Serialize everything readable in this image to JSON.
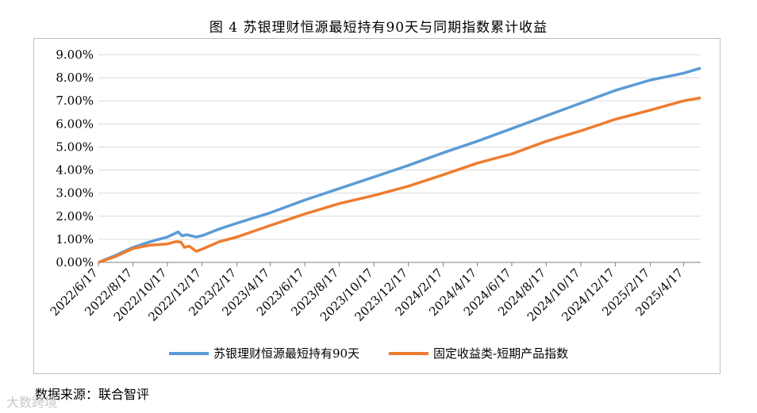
{
  "title": "图 4 苏银理财恒源最短持有90天与同期指数累计收益",
  "source": "数据来源：联合智评",
  "watermark": "大数跨境",
  "colors": {
    "series1": "#5b9bd5",
    "series2": "#ed7d31",
    "grid": "#d9d9d9",
    "axis": "#7f7f7f"
  },
  "chart_data": {
    "type": "line",
    "title": "图 4 苏银理财恒源最短持有90天与同期指数累计收益",
    "xlabel": "",
    "ylabel": "",
    "ylim": [
      0,
      0.09
    ],
    "ytick_step": 0.01,
    "yticks": [
      "0.00%",
      "1.00%",
      "2.00%",
      "3.00%",
      "4.00%",
      "5.00%",
      "6.00%",
      "7.00%",
      "8.00%",
      "9.00%"
    ],
    "x_range": [
      "2022-06-17",
      "2025-05-17"
    ],
    "xticks": [
      "2022/6/17",
      "2022/8/17",
      "2022/10/17",
      "2022/12/17",
      "2023/2/17",
      "2023/4/17",
      "2023/6/17",
      "2023/8/17",
      "2023/10/17",
      "2023/12/17",
      "2024/2/17",
      "2024/4/17",
      "2024/6/17",
      "2024/8/17",
      "2024/10/17",
      "2024/12/17",
      "2025/2/17",
      "2025/4/17"
    ],
    "grid": true,
    "legend_position": "bottom",
    "series": [
      {
        "name": "苏银理财恒源最短持有90天",
        "points": [
          [
            "2022-06-17",
            0.0
          ],
          [
            "2022-07-17",
            0.003
          ],
          [
            "2022-08-17",
            0.0065
          ],
          [
            "2022-09-17",
            0.009
          ],
          [
            "2022-10-17",
            0.011
          ],
          [
            "2022-11-05",
            0.0132
          ],
          [
            "2022-11-12",
            0.0115
          ],
          [
            "2022-11-20",
            0.012
          ],
          [
            "2022-12-07",
            0.011
          ],
          [
            "2022-12-20",
            0.0118
          ],
          [
            "2023-01-17",
            0.0145
          ],
          [
            "2023-02-17",
            0.017
          ],
          [
            "2023-04-17",
            0.0215
          ],
          [
            "2023-06-17",
            0.027
          ],
          [
            "2023-08-17",
            0.032
          ],
          [
            "2023-10-17",
            0.037
          ],
          [
            "2023-12-17",
            0.042
          ],
          [
            "2024-02-17",
            0.0475
          ],
          [
            "2024-04-17",
            0.0525
          ],
          [
            "2024-06-17",
            0.058
          ],
          [
            "2024-08-17",
            0.0635
          ],
          [
            "2024-10-17",
            0.069
          ],
          [
            "2024-12-17",
            0.0745
          ],
          [
            "2025-02-17",
            0.079
          ],
          [
            "2025-04-17",
            0.082
          ],
          [
            "2025-05-17",
            0.0842
          ]
        ]
      },
      {
        "name": "固定收益类-短期产品指数",
        "points": [
          [
            "2022-06-17",
            0.0
          ],
          [
            "2022-07-17",
            0.0025
          ],
          [
            "2022-08-17",
            0.006
          ],
          [
            "2022-09-17",
            0.0075
          ],
          [
            "2022-10-17",
            0.008
          ],
          [
            "2022-11-01",
            0.009
          ],
          [
            "2022-11-10",
            0.0088
          ],
          [
            "2022-11-16",
            0.0065
          ],
          [
            "2022-11-25",
            0.007
          ],
          [
            "2022-12-07",
            0.0048
          ],
          [
            "2022-12-20",
            0.006
          ],
          [
            "2023-01-17",
            0.009
          ],
          [
            "2023-02-17",
            0.011
          ],
          [
            "2023-04-17",
            0.016
          ],
          [
            "2023-06-17",
            0.021
          ],
          [
            "2023-08-17",
            0.0255
          ],
          [
            "2023-10-17",
            0.029
          ],
          [
            "2023-12-17",
            0.033
          ],
          [
            "2024-02-17",
            0.038
          ],
          [
            "2024-04-17",
            0.043
          ],
          [
            "2024-06-17",
            0.047
          ],
          [
            "2024-08-17",
            0.0525
          ],
          [
            "2024-10-17",
            0.057
          ],
          [
            "2024-12-17",
            0.062
          ],
          [
            "2025-02-17",
            0.066
          ],
          [
            "2025-04-17",
            0.07
          ],
          [
            "2025-05-17",
            0.0713
          ]
        ]
      }
    ]
  }
}
